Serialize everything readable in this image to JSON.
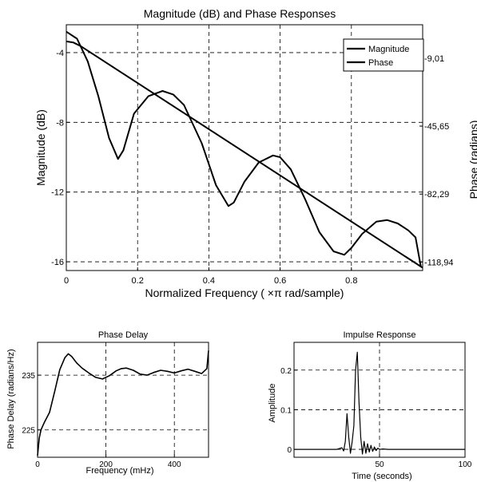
{
  "chart_data": [
    {
      "type": "line",
      "title": "Magnitude (dB) and Phase Responses",
      "xlabel": "Normalized Frequency ( ×π rad/sample)",
      "ylabel": "Magnitude (dB)",
      "ylabel_right": "Phase (radians)",
      "xlim": [
        0,
        1
      ],
      "ylim": [
        -16.5,
        -2.4
      ],
      "ylim_right": [
        -123.5,
        9.0
      ],
      "xticks": [
        "0",
        "0.2",
        "0.4",
        "0.6",
        "0.8"
      ],
      "xtick_values": [
        0,
        0.2,
        0.4,
        0.6,
        0.8
      ],
      "yticks": [
        "-4",
        "-8",
        "-12",
        "-16"
      ],
      "ytick_values": [
        -4,
        -8,
        -12,
        -16
      ],
      "yticks_right": [
        "-9,01",
        "-45,65",
        "-82,29",
        "-118,94"
      ],
      "ytick_right_values": [
        -9.01,
        -45.65,
        -82.29,
        -118.94
      ],
      "grid": true,
      "legend": {
        "placement": "top-right",
        "entries": [
          "Magnitude",
          "Phase"
        ]
      },
      "series": [
        {
          "name": "Magnitude",
          "axis": "left",
          "x": [
            0,
            0.03,
            0.06,
            0.09,
            0.12,
            0.145,
            0.16,
            0.19,
            0.23,
            0.27,
            0.3,
            0.33,
            0.38,
            0.42,
            0.455,
            0.47,
            0.5,
            0.54,
            0.58,
            0.6,
            0.63,
            0.67,
            0.71,
            0.75,
            0.78,
            0.8,
            0.83,
            0.87,
            0.9,
            0.93,
            0.96,
            0.98,
            0.995
          ],
          "values": [
            -2.8,
            -3.2,
            -4.5,
            -6.5,
            -8.9,
            -10.1,
            -9.6,
            -7.5,
            -6.5,
            -6.2,
            -6.4,
            -7.0,
            -9.2,
            -11.6,
            -12.8,
            -12.6,
            -11.4,
            -10.3,
            -9.9,
            -10.0,
            -10.7,
            -12.4,
            -14.3,
            -15.4,
            -15.6,
            -15.2,
            -14.4,
            -13.7,
            -13.6,
            -13.8,
            -14.2,
            -14.6,
            -16.3
          ]
        },
        {
          "name": "Phase",
          "axis": "right",
          "x": [
            0,
            0.02,
            0.04,
            1.0
          ],
          "values": [
            0.0,
            -0.6,
            -2.5,
            -122.0
          ]
        }
      ]
    },
    {
      "type": "line",
      "title": "Phase Delay",
      "xlabel": "Frequency (mHz)",
      "ylabel": "Phase Delay (radians/Hz)",
      "xlim": [
        0,
        500
      ],
      "ylim": [
        220,
        241
      ],
      "xticks": [
        "0",
        "200",
        "400"
      ],
      "xtick_values": [
        0,
        200,
        400
      ],
      "yticks": [
        "225",
        "235"
      ],
      "ytick_values": [
        225,
        235
      ],
      "grid": true,
      "series": [
        {
          "x": [
            0,
            5,
            10,
            20,
            35,
            50,
            65,
            80,
            90,
            100,
            115,
            130,
            150,
            170,
            190,
            210,
            230,
            245,
            260,
            280,
            300,
            320,
            340,
            360,
            380,
            400,
            420,
            440,
            460,
            480,
            495,
            500
          ],
          "values": [
            220.3,
            223.5,
            225.0,
            226.4,
            228.2,
            232.0,
            236.0,
            238.2,
            238.9,
            238.4,
            237.2,
            236.3,
            235.4,
            234.6,
            234.3,
            234.9,
            235.8,
            236.2,
            236.3,
            235.9,
            235.2,
            235.0,
            235.5,
            235.9,
            235.7,
            235.4,
            235.8,
            236.1,
            235.7,
            235.3,
            236.2,
            239.5
          ]
        }
      ]
    },
    {
      "type": "line",
      "title": "Impulse Response",
      "xlabel": "Time (seconds)",
      "ylabel": "Amplitude",
      "xlim": [
        0,
        100
      ],
      "ylim": [
        -0.02,
        0.27
      ],
      "xticks": [
        "50",
        "100"
      ],
      "xtick_values": [
        50,
        100
      ],
      "yticks": [
        "0",
        "0.1",
        "0.2"
      ],
      "ytick_values": [
        0,
        0.1,
        0.2
      ],
      "grid": true,
      "series": [
        {
          "x": [
            0,
            20,
            25,
            28,
            29,
            30,
            31,
            32,
            33,
            34,
            35,
            36,
            37,
            38,
            39,
            40,
            41,
            42,
            43,
            44,
            45,
            46,
            47,
            48,
            49,
            50,
            52,
            55,
            60,
            100
          ],
          "values": [
            0,
            0,
            0,
            0.004,
            -0.004,
            0.02,
            0.09,
            0.03,
            -0.01,
            0.02,
            0.06,
            0.2,
            0.245,
            0.12,
            0.03,
            -0.012,
            0.02,
            -0.01,
            0.014,
            -0.007,
            0.01,
            -0.005,
            0.006,
            -0.003,
            0.003,
            0,
            0.001,
            0,
            0,
            0
          ]
        }
      ]
    }
  ]
}
